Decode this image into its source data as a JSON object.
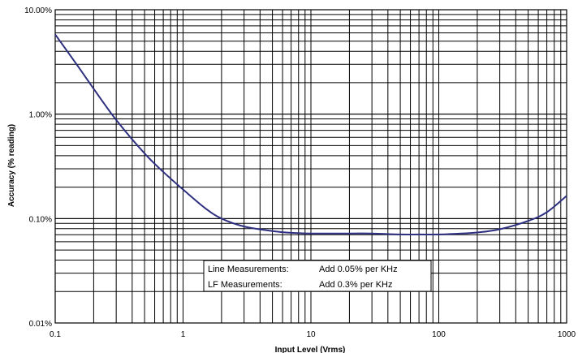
{
  "chart_data": {
    "type": "line",
    "xlabel": "Input Level (Vrms)",
    "ylabel": "Accuracy (% reading)",
    "xscale": "log",
    "yscale": "log",
    "xlim": [
      0.1,
      1000
    ],
    "ylim": [
      0.01,
      10
    ],
    "grid": true,
    "x_ticks": [
      {
        "value": 0.1,
        "label": "0.1"
      },
      {
        "value": 1,
        "label": "1"
      },
      {
        "value": 10,
        "label": "10"
      },
      {
        "value": 100,
        "label": "100"
      },
      {
        "value": 1000,
        "label": "1000"
      }
    ],
    "y_ticks": [
      {
        "value": 10,
        "label": "10.00%"
      },
      {
        "value": 1,
        "label": "1.00%"
      },
      {
        "value": 0.1,
        "label": "0.10%"
      },
      {
        "value": 0.01,
        "label": "0.01%"
      }
    ],
    "series": [
      {
        "color": "#2e3080",
        "x": [
          0.1,
          0.15,
          0.2,
          0.3,
          0.5,
          0.7,
          1,
          1.5,
          2,
          3,
          5,
          7,
          10,
          20,
          30,
          50,
          70,
          100,
          150,
          200,
          300,
          500,
          700,
          1000
        ],
        "y": [
          5.8,
          2.9,
          1.75,
          0.88,
          0.42,
          0.28,
          0.19,
          0.125,
          0.1,
          0.084,
          0.076,
          0.073,
          0.072,
          0.072,
          0.072,
          0.0705,
          0.0705,
          0.0705,
          0.072,
          0.0735,
          0.079,
          0.095,
          0.115,
          0.165
        ]
      }
    ],
    "annotation_table": {
      "rows": [
        {
          "label": "Line Measurements:",
          "value": "Add 0.05% per KHz"
        },
        {
          "label": "LF Measurements:",
          "value": "Add 0.3% per KHz"
        }
      ]
    }
  }
}
